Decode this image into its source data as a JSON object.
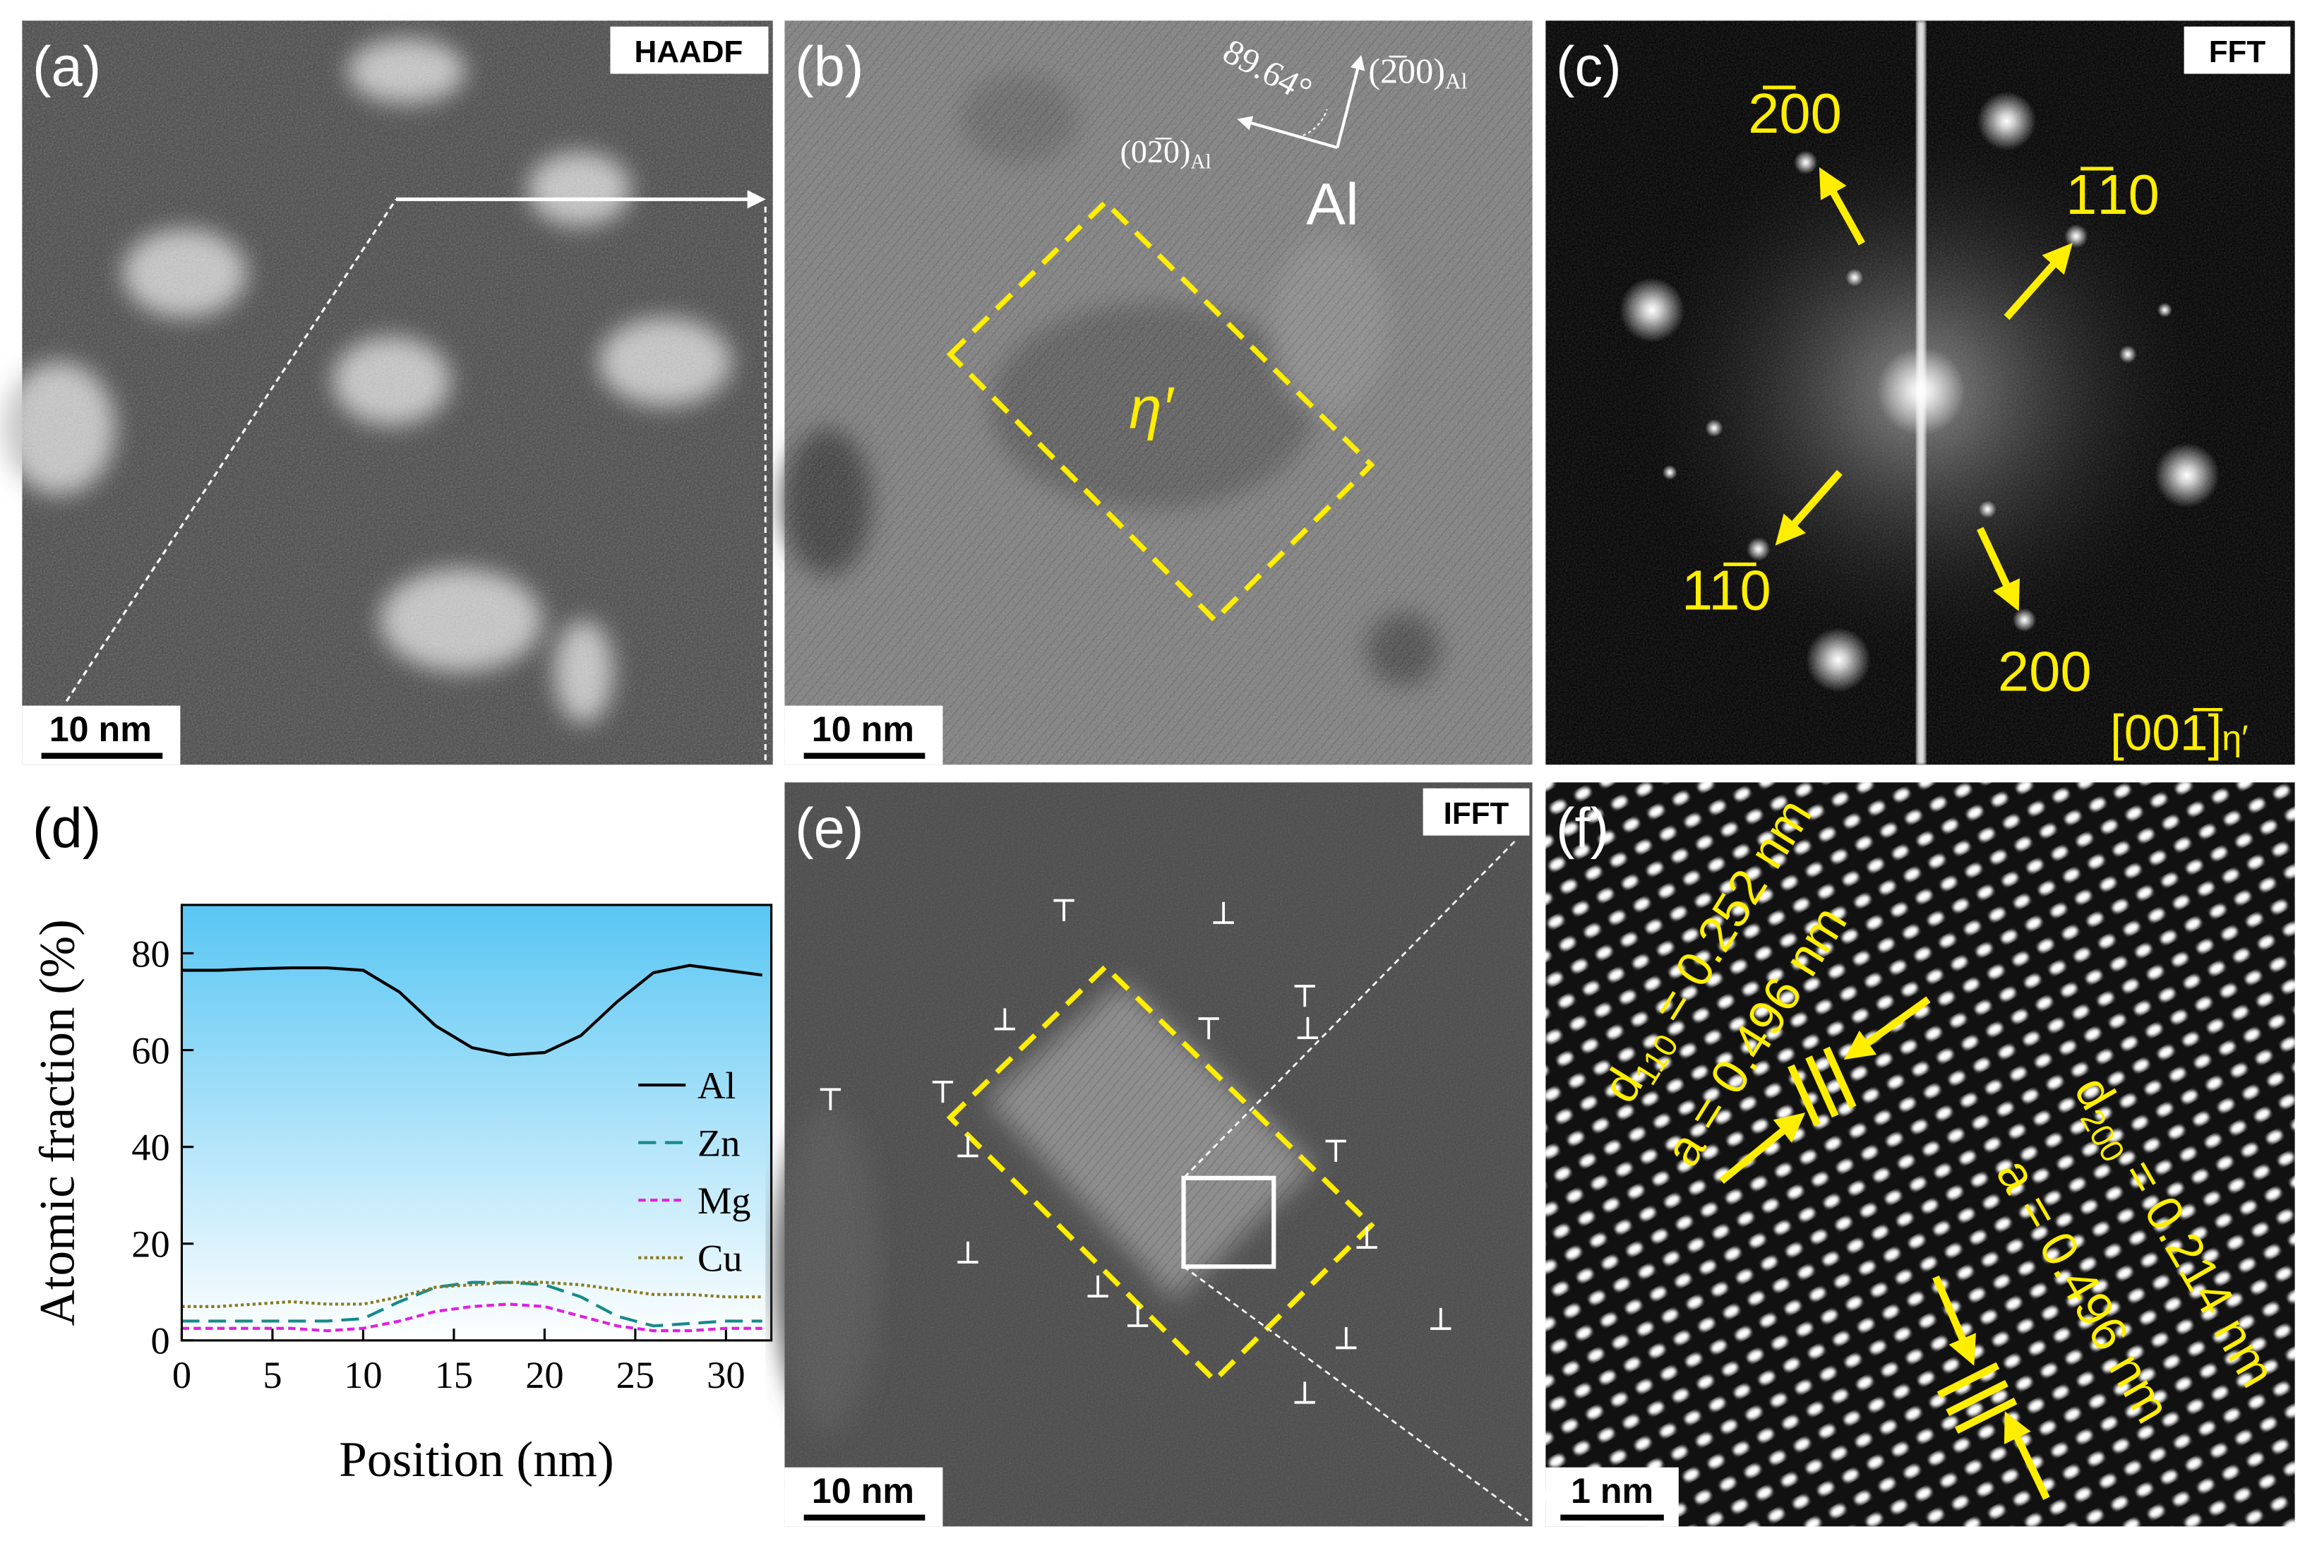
{
  "panels": {
    "a": {
      "label": "(a)",
      "badge": "HAADF",
      "scale_bar": "10 nm"
    },
    "b": {
      "label": "(b)",
      "scale_bar": "10 nm",
      "direction_1": {
        "text": "(2̅00)",
        "sub": "Al"
      },
      "direction_2": {
        "text": "(02̅0)",
        "sub": "Al"
      },
      "angle": "89.64°",
      "matrix": "Al",
      "precipitate": "η′"
    },
    "c": {
      "label": "(c)",
      "badge": "FFT",
      "spots": [
        "2̅00",
        "1̅10",
        "11̅0",
        "200"
      ],
      "zone_axis": {
        "text": "[001̅]",
        "sub": "η′"
      }
    },
    "d": {
      "label": "(d)"
    },
    "e": {
      "label": "(e)",
      "badge": "IFFT",
      "scale_bar": "10 nm"
    },
    "f": {
      "label": "(f)",
      "scale_bar": "1 nm",
      "spacing_1": {
        "d": "d",
        "sub": "110",
        "text": " = 0.252 nm",
        "a": "a = 0.496 nm"
      },
      "spacing_2": {
        "d": "d",
        "sub": "200",
        "text": " = 0.214 nm",
        "a": "a = 0.496 nm"
      }
    }
  },
  "chart_data": {
    "type": "line",
    "x_label": "Position (nm)",
    "y_label": "Atomic fraction (%)",
    "x": [
      0,
      2,
      4,
      6,
      8,
      10,
      12,
      14,
      16,
      18,
      20,
      22,
      24,
      26,
      28,
      30,
      32
    ],
    "series": [
      {
        "name": "Al",
        "color": "#000000",
        "style": "solid",
        "values": [
          76.5,
          76.5,
          76.8,
          77,
          77,
          76.5,
          72,
          65,
          60.5,
          59,
          59.5,
          63,
          70,
          76,
          77.5,
          76.5,
          75.5
        ]
      },
      {
        "name": "Zn",
        "color": "#168a8a",
        "style": "dashed",
        "values": [
          4,
          4,
          4,
          4,
          4,
          4.5,
          8,
          11,
          12,
          12,
          11.5,
          9,
          5,
          3,
          3.5,
          4,
          4
        ]
      },
      {
        "name": "Mg",
        "color": "#e020e0",
        "style": "short-dashed",
        "values": [
          2.5,
          2.5,
          2.5,
          2.5,
          2,
          2.5,
          4,
          6,
          7,
          7.5,
          7,
          5,
          3,
          2,
          2,
          2.5,
          2.5
        ]
      },
      {
        "name": "Cu",
        "color": "#8a7a20",
        "style": "dotted",
        "values": [
          7,
          7,
          7.5,
          8,
          7.5,
          7.5,
          9,
          11,
          11.5,
          12,
          12,
          11.5,
          10.5,
          9.5,
          9.5,
          9,
          9
        ]
      }
    ],
    "xlim": [
      0,
      32.5
    ],
    "ylim": [
      0,
      90
    ],
    "xticks": [
      0,
      5,
      10,
      15,
      20,
      25,
      30
    ],
    "yticks": [
      0,
      20,
      40,
      60,
      80
    ],
    "legend": "right"
  }
}
